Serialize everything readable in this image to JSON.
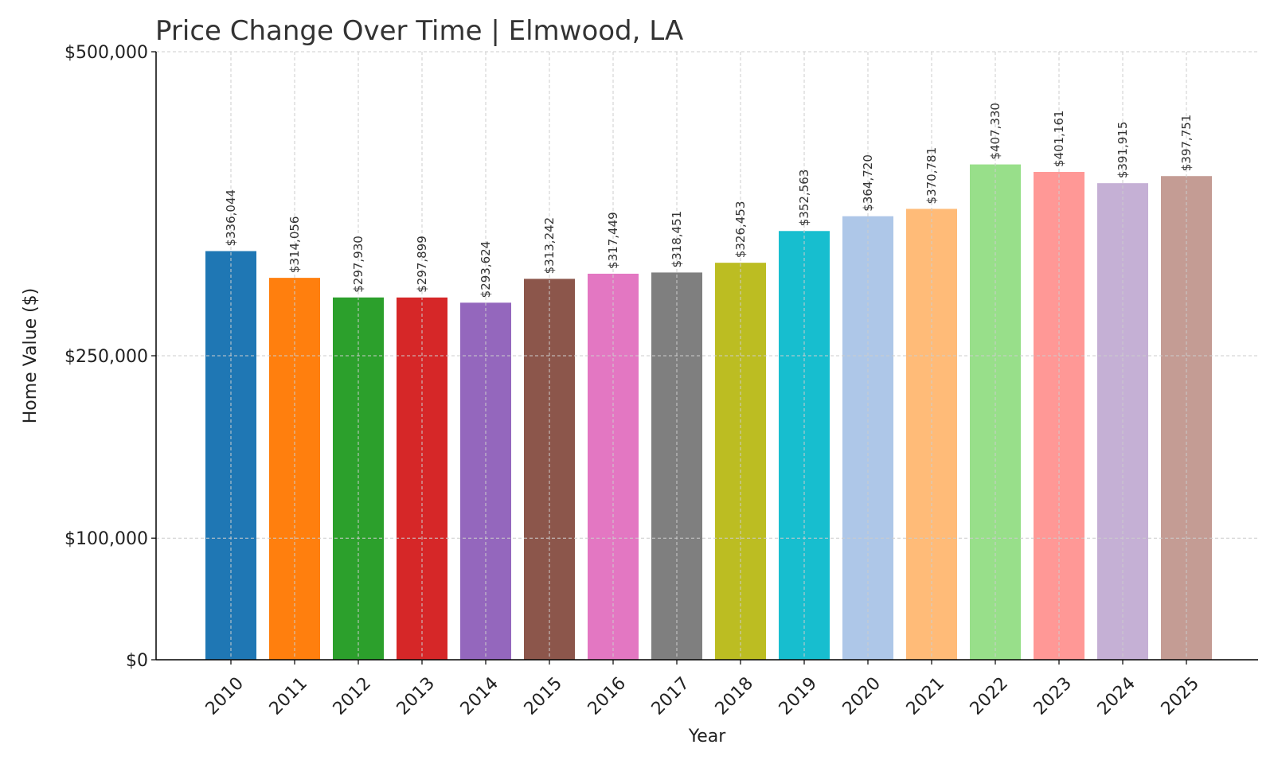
{
  "chart_data": {
    "type": "bar",
    "title": "Price Change Over Time | Elmwood, LA",
    "xlabel": "Year",
    "ylabel": "Home Value ($)",
    "categories": [
      "2010",
      "2011",
      "2012",
      "2013",
      "2014",
      "2015",
      "2016",
      "2017",
      "2018",
      "2019",
      "2020",
      "2021",
      "2022",
      "2023",
      "2024",
      "2025"
    ],
    "values": [
      336044,
      314056,
      297930,
      297899,
      293624,
      313242,
      317449,
      318451,
      326453,
      352563,
      364720,
      370781,
      407330,
      401161,
      391915,
      397751
    ],
    "value_labels": [
      "$336,044",
      "$314,056",
      "$297,930",
      "$297,899",
      "$293,624",
      "$313,242",
      "$317,449",
      "$318,451",
      "$326,453",
      "$352,563",
      "$364,720",
      "$370,781",
      "$407,330",
      "$401,161",
      "$391,915",
      "$397,751"
    ],
    "ylim": [
      0,
      500000
    ],
    "y_ticks": [
      0,
      100000,
      250000,
      500000
    ],
    "y_tick_labels": [
      "$0",
      "$100,000",
      "$250,000",
      "$500,000"
    ],
    "grid": true,
    "colors": [
      "#1f77b4",
      "#ff7f0e",
      "#2ca02c",
      "#d62728",
      "#9467bd",
      "#8c564b",
      "#e377c2",
      "#7f7f7f",
      "#bcbd22",
      "#17becf",
      "#aec7e8",
      "#ffbb78",
      "#98df8a",
      "#ff9896",
      "#c5b0d5",
      "#c49c94"
    ]
  }
}
